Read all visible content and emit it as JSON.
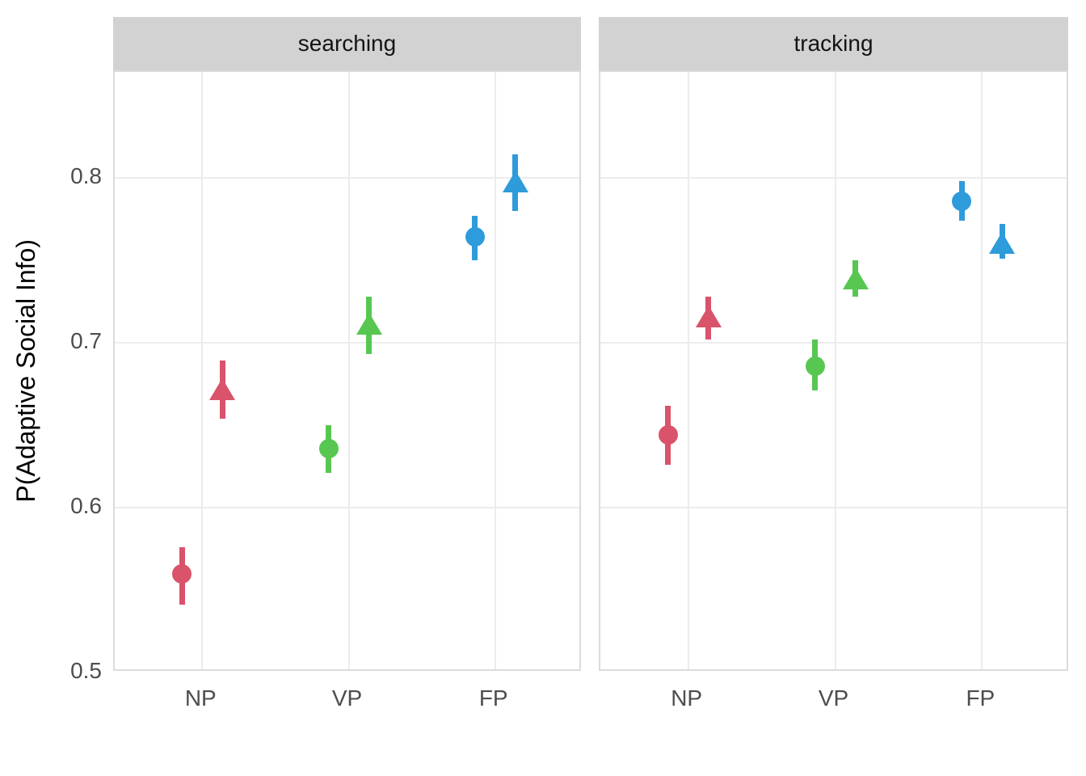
{
  "chart_data": {
    "type": "pointrange",
    "title": "",
    "xlabel": "",
    "ylabel": "P(Adaptive Social Info)",
    "ylim": [
      0.5,
      0.865
    ],
    "grid": "major-only",
    "legend": "none",
    "facets_label": [
      "searching",
      "tracking"
    ],
    "categories": [
      "NP",
      "VP",
      "FP"
    ],
    "category_colors": {
      "NP": "#D9536B",
      "VP": "#57C752",
      "FP": "#2E9BDB"
    },
    "y_axis": {
      "ticks": [
        {
          "label": "0.8",
          "value": 0.8
        },
        {
          "label": "0.7",
          "value": 0.7
        },
        {
          "label": "0.6",
          "value": 0.6
        },
        {
          "label": "0.5",
          "value": 0.5
        }
      ]
    },
    "facets": [
      {
        "label": "searching",
        "points": [
          {
            "category": "NP",
            "shape": "circle",
            "mean": 0.56,
            "lower": 0.541,
            "upper": 0.576
          },
          {
            "category": "NP",
            "shape": "triangle",
            "mean": 0.672,
            "lower": 0.654,
            "upper": 0.689
          },
          {
            "category": "VP",
            "shape": "circle",
            "mean": 0.636,
            "lower": 0.621,
            "upper": 0.65
          },
          {
            "category": "VP",
            "shape": "triangle",
            "mean": 0.712,
            "lower": 0.693,
            "upper": 0.728
          },
          {
            "category": "FP",
            "shape": "circle",
            "mean": 0.764,
            "lower": 0.75,
            "upper": 0.777
          },
          {
            "category": "FP",
            "shape": "triangle",
            "mean": 0.798,
            "lower": 0.78,
            "upper": 0.814
          }
        ]
      },
      {
        "label": "tracking",
        "points": [
          {
            "category": "NP",
            "shape": "circle",
            "mean": 0.644,
            "lower": 0.626,
            "upper": 0.662
          },
          {
            "category": "NP",
            "shape": "triangle",
            "mean": 0.716,
            "lower": 0.702,
            "upper": 0.728
          },
          {
            "category": "VP",
            "shape": "circle",
            "mean": 0.686,
            "lower": 0.671,
            "upper": 0.702
          },
          {
            "category": "VP",
            "shape": "triangle",
            "mean": 0.739,
            "lower": 0.728,
            "upper": 0.75
          },
          {
            "category": "FP",
            "shape": "circle",
            "mean": 0.786,
            "lower": 0.774,
            "upper": 0.798
          },
          {
            "category": "FP",
            "shape": "triangle",
            "mean": 0.761,
            "lower": 0.751,
            "upper": 0.772
          }
        ]
      }
    ]
  }
}
